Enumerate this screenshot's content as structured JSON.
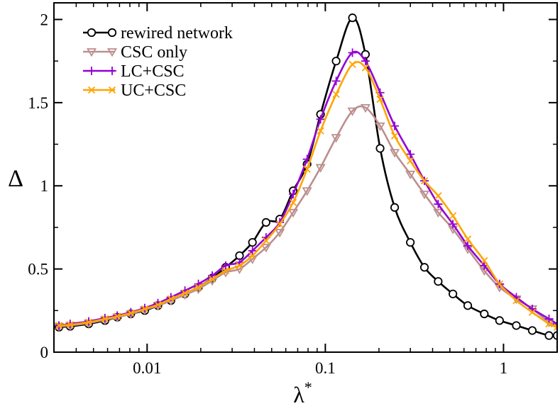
{
  "chart_data": {
    "type": "line",
    "title": "",
    "xlabel": "λ*",
    "xlabel_base": "λ",
    "xlabel_sup": "*",
    "ylabel": "Δ",
    "xscale": "log",
    "xlim": [
      0.003,
      2.0
    ],
    "ylim": [
      0,
      2.1
    ],
    "xticks": [
      {
        "value": 0.01,
        "label": "0.01"
      },
      {
        "value": 0.1,
        "label": "0.1"
      },
      {
        "value": 1,
        "label": "1"
      }
    ],
    "yticks": [
      {
        "value": 0,
        "label": "0"
      },
      {
        "value": 0.5,
        "label": "0.5"
      },
      {
        "value": 1,
        "label": "1"
      },
      {
        "value": 1.5,
        "label": "1.5"
      },
      {
        "value": 2,
        "label": "2"
      }
    ],
    "legend_position": "top-left",
    "series": [
      {
        "name": "rewired network",
        "color": "#000000",
        "marker": "circle",
        "x": [
          0.0032,
          0.0037,
          0.0047,
          0.0058,
          0.0068,
          0.0081,
          0.0097,
          0.0115,
          0.0136,
          0.0163,
          0.0194,
          0.0232,
          0.0276,
          0.033,
          0.039,
          0.0465,
          0.0555,
          0.066,
          0.079,
          0.094,
          0.115,
          0.142,
          0.168,
          0.203,
          0.245,
          0.3,
          0.36,
          0.43,
          0.52,
          0.63,
          0.78,
          0.95,
          1.18,
          1.45,
          1.8,
          2.0
        ],
        "y": [
          0.15,
          0.155,
          0.17,
          0.19,
          0.21,
          0.23,
          0.25,
          0.28,
          0.31,
          0.35,
          0.39,
          0.445,
          0.51,
          0.58,
          0.66,
          0.78,
          0.8,
          0.97,
          1.13,
          1.43,
          1.75,
          2.01,
          1.79,
          1.225,
          0.87,
          0.66,
          0.51,
          0.425,
          0.35,
          0.28,
          0.23,
          0.19,
          0.16,
          0.13,
          0.1,
          0.1
        ]
      },
      {
        "name": "CSC only",
        "color": "#bc8f8f",
        "marker": "triangle-down",
        "x": [
          0.0032,
          0.0037,
          0.0047,
          0.0058,
          0.0068,
          0.0081,
          0.0097,
          0.0115,
          0.0136,
          0.0163,
          0.0194,
          0.0232,
          0.0276,
          0.033,
          0.039,
          0.0465,
          0.0555,
          0.066,
          0.079,
          0.094,
          0.115,
          0.142,
          0.168,
          0.203,
          0.245,
          0.3,
          0.36,
          0.43,
          0.52,
          0.63,
          0.78,
          0.95,
          1.18,
          1.45,
          1.8,
          2.0
        ],
        "y": [
          0.155,
          0.16,
          0.175,
          0.195,
          0.21,
          0.23,
          0.255,
          0.28,
          0.31,
          0.345,
          0.38,
          0.43,
          0.48,
          0.5,
          0.56,
          0.63,
          0.72,
          0.84,
          0.97,
          1.11,
          1.29,
          1.45,
          1.47,
          1.36,
          1.2,
          1.07,
          0.95,
          0.84,
          0.74,
          0.62,
          0.49,
          0.39,
          0.32,
          0.26,
          0.18,
          0.16
        ]
      },
      {
        "name": "LC+CSC",
        "color": "#9400d3",
        "marker": "plus",
        "x": [
          0.0032,
          0.0037,
          0.0047,
          0.0058,
          0.0068,
          0.0081,
          0.0097,
          0.0115,
          0.0136,
          0.0163,
          0.0194,
          0.0232,
          0.0276,
          0.033,
          0.039,
          0.0465,
          0.0555,
          0.066,
          0.079,
          0.094,
          0.115,
          0.142,
          0.168,
          0.203,
          0.245,
          0.3,
          0.36,
          0.43,
          0.52,
          0.63,
          0.78,
          0.95,
          1.18,
          1.45,
          1.8,
          2.0
        ],
        "y": [
          0.16,
          0.17,
          0.185,
          0.205,
          0.22,
          0.24,
          0.265,
          0.295,
          0.33,
          0.37,
          0.41,
          0.46,
          0.52,
          0.54,
          0.61,
          0.69,
          0.78,
          0.95,
          1.16,
          1.4,
          1.63,
          1.8,
          1.75,
          1.56,
          1.36,
          1.19,
          1.03,
          0.89,
          0.77,
          0.64,
          0.52,
          0.41,
          0.33,
          0.26,
          0.2,
          0.17
        ]
      },
      {
        "name": "UC+CSC",
        "color": "#ffa500",
        "marker": "x",
        "x": [
          0.0032,
          0.0037,
          0.0047,
          0.0058,
          0.0068,
          0.0081,
          0.0097,
          0.0115,
          0.0136,
          0.0163,
          0.0194,
          0.0232,
          0.0276,
          0.033,
          0.039,
          0.0465,
          0.0555,
          0.066,
          0.079,
          0.094,
          0.115,
          0.142,
          0.168,
          0.203,
          0.245,
          0.3,
          0.36,
          0.43,
          0.52,
          0.63,
          0.78,
          0.95,
          1.18,
          1.45,
          1.8,
          2.0
        ],
        "y": [
          0.16,
          0.165,
          0.18,
          0.2,
          0.215,
          0.235,
          0.26,
          0.285,
          0.32,
          0.355,
          0.39,
          0.44,
          0.49,
          0.52,
          0.58,
          0.67,
          0.77,
          0.9,
          1.1,
          1.33,
          1.55,
          1.73,
          1.71,
          1.52,
          1.3,
          1.15,
          1.03,
          0.94,
          0.82,
          0.68,
          0.55,
          0.41,
          0.31,
          0.24,
          0.17,
          0.15
        ]
      }
    ]
  }
}
